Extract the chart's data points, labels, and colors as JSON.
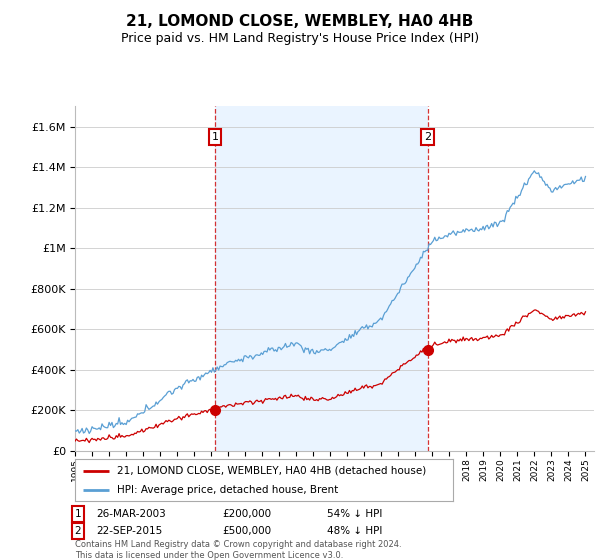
{
  "title": "21, LOMOND CLOSE, WEMBLEY, HA0 4HB",
  "subtitle": "Price paid vs. HM Land Registry's House Price Index (HPI)",
  "hpi_label": "HPI: Average price, detached house, Brent",
  "price_label": "21, LOMOND CLOSE, WEMBLEY, HA0 4HB (detached house)",
  "footnote": "Contains HM Land Registry data © Crown copyright and database right 2024.\nThis data is licensed under the Open Government Licence v3.0.",
  "sale1_date": 2003.23,
  "sale1_price": 200000,
  "sale1_label": "26-MAR-2003",
  "sale1_pct": "54% ↓ HPI",
  "sale2_date": 2015.73,
  "sale2_price": 500000,
  "sale2_label": "22-SEP-2015",
  "sale2_pct": "48% ↓ HPI",
  "hpi_color": "#5a9fd4",
  "price_color": "#cc0000",
  "vline_color": "#cc0000",
  "marker_box_color": "#cc0000",
  "shade_color": "#ddeeff",
  "ylim_max": 1700000,
  "xlim_min": 1995.0,
  "xlim_max": 2025.5,
  "background_color": "#ffffff",
  "grid_color": "#cccccc",
  "title_fontsize": 11,
  "subtitle_fontsize": 9
}
